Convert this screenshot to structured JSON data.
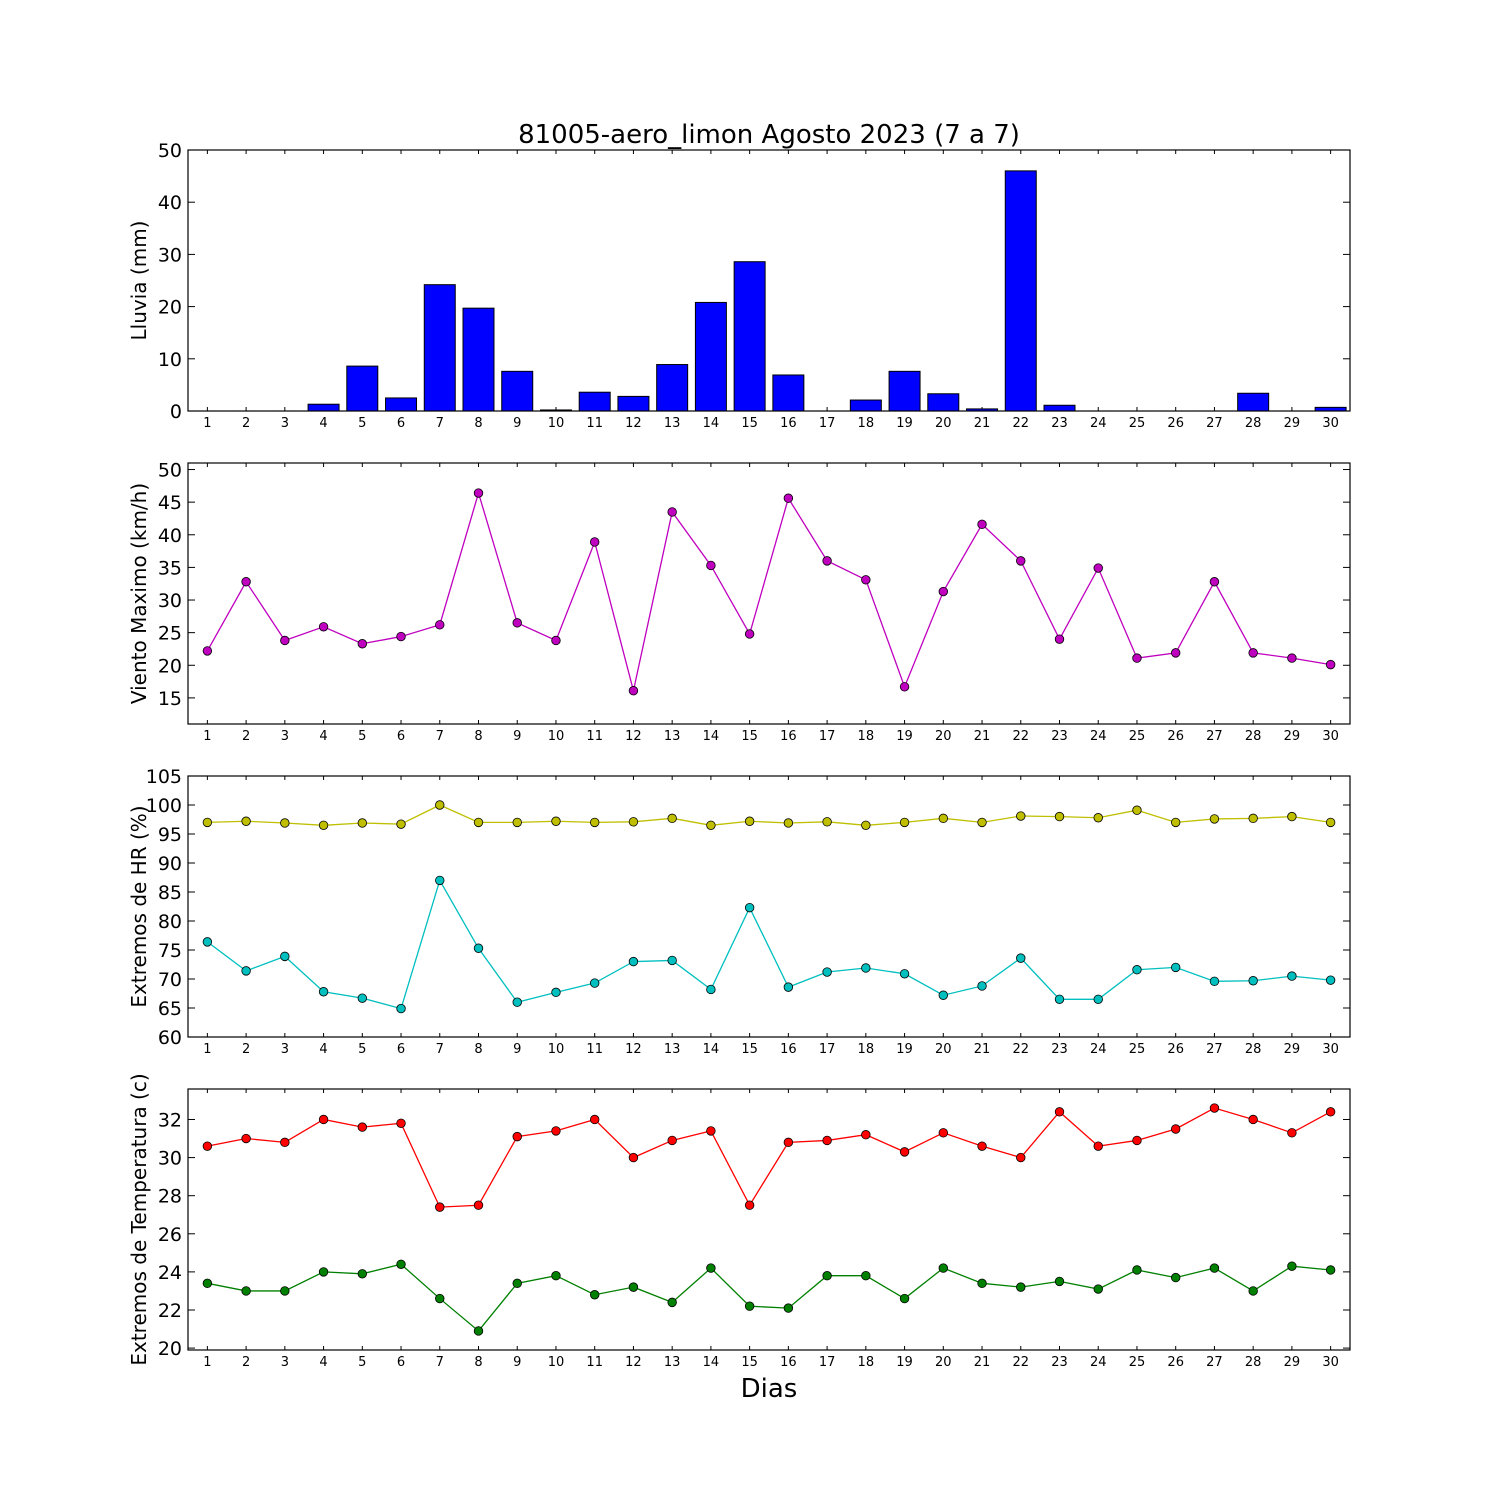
{
  "figure": {
    "title": "81005-aero_limon Agosto 2023  (7 a 7)",
    "xlabel": "Dias"
  },
  "chart_data": [
    {
      "type": "bar",
      "ylabel": "Lluvia (mm)",
      "ylim": [
        0,
        50
      ],
      "yticks": [
        0,
        10,
        20,
        30,
        40,
        50
      ],
      "x": [
        1,
        2,
        3,
        4,
        5,
        6,
        7,
        8,
        9,
        10,
        11,
        12,
        13,
        14,
        15,
        16,
        17,
        18,
        19,
        20,
        21,
        22,
        23,
        24,
        25,
        26,
        27,
        28,
        29,
        30
      ],
      "series": [
        {
          "color": "#0000ff",
          "values": [
            0,
            0,
            0,
            1.3,
            8.6,
            2.5,
            24.2,
            19.7,
            7.6,
            0.2,
            3.6,
            2.8,
            8.9,
            20.8,
            28.6,
            6.9,
            0,
            2.1,
            7.6,
            3.3,
            0.4,
            46.0,
            1.1,
            0,
            0,
            0,
            0,
            3.4,
            0,
            0.7
          ]
        }
      ]
    },
    {
      "type": "line",
      "ylabel": "Viento Maximo (km/h)",
      "ylim": [
        11,
        51
      ],
      "yticks": [
        15,
        20,
        25,
        30,
        35,
        40,
        45,
        50
      ],
      "x": [
        1,
        2,
        3,
        4,
        5,
        6,
        7,
        8,
        9,
        10,
        11,
        12,
        13,
        14,
        15,
        16,
        17,
        18,
        19,
        20,
        21,
        22,
        23,
        24,
        25,
        26,
        27,
        28,
        29,
        30
      ],
      "series": [
        {
          "color": "#bf00bf",
          "values": [
            22.2,
            32.8,
            23.8,
            25.9,
            23.3,
            24.4,
            26.2,
            46.4,
            26.5,
            23.8,
            38.9,
            16.1,
            43.5,
            35.3,
            24.8,
            45.6,
            36.0,
            33.1,
            16.7,
            31.3,
            41.6,
            36.0,
            24.0,
            34.9,
            21.1,
            21.9,
            32.8,
            21.9,
            21.1,
            20.1
          ]
        }
      ]
    },
    {
      "type": "line",
      "ylabel": "Extremos de HR (%)",
      "ylim": [
        60,
        105
      ],
      "yticks": [
        60,
        65,
        70,
        75,
        80,
        85,
        90,
        95,
        100,
        105
      ],
      "x": [
        1,
        2,
        3,
        4,
        5,
        6,
        7,
        8,
        9,
        10,
        11,
        12,
        13,
        14,
        15,
        16,
        17,
        18,
        19,
        20,
        21,
        22,
        23,
        24,
        25,
        26,
        27,
        28,
        29,
        30
      ],
      "series": [
        {
          "color": "#bfbf00",
          "values": [
            97.0,
            97.2,
            96.9,
            96.5,
            96.9,
            96.7,
            100.0,
            97.0,
            97.0,
            97.2,
            97.0,
            97.1,
            97.7,
            96.5,
            97.2,
            96.9,
            97.1,
            96.5,
            97.0,
            97.7,
            97.0,
            98.1,
            98.0,
            97.8,
            99.1,
            97.0,
            97.6,
            97.7,
            98.0,
            97.0
          ]
        },
        {
          "color": "#00bfbf",
          "values": [
            76.4,
            71.4,
            73.9,
            67.8,
            66.7,
            64.9,
            87.0,
            75.3,
            66.0,
            67.7,
            69.3,
            73.0,
            73.2,
            68.2,
            82.3,
            68.6,
            71.2,
            71.9,
            70.9,
            67.2,
            68.8,
            73.6,
            66.5,
            66.5,
            71.6,
            72.0,
            69.6,
            69.7,
            70.5,
            69.8
          ]
        }
      ]
    },
    {
      "type": "line",
      "ylabel": "Extremos de Temperatura (c)",
      "ylim": [
        19.9,
        33.6
      ],
      "yticks": [
        20,
        22,
        24,
        26,
        28,
        30,
        32
      ],
      "x": [
        1,
        2,
        3,
        4,
        5,
        6,
        7,
        8,
        9,
        10,
        11,
        12,
        13,
        14,
        15,
        16,
        17,
        18,
        19,
        20,
        21,
        22,
        23,
        24,
        25,
        26,
        27,
        28,
        29,
        30
      ],
      "series": [
        {
          "color": "#ff0000",
          "values": [
            30.6,
            31.0,
            30.8,
            32.0,
            31.6,
            31.8,
            27.4,
            27.5,
            31.1,
            31.4,
            32.0,
            30.0,
            30.9,
            31.4,
            27.5,
            30.8,
            30.9,
            31.2,
            30.3,
            31.3,
            30.6,
            30.0,
            32.4,
            30.6,
            30.9,
            31.5,
            32.6,
            32.0,
            31.3,
            32.4
          ]
        },
        {
          "color": "#008000",
          "values": [
            23.4,
            23.0,
            23.0,
            24.0,
            23.9,
            24.4,
            22.6,
            20.9,
            23.4,
            23.8,
            22.8,
            23.2,
            22.4,
            24.2,
            22.2,
            22.1,
            23.8,
            23.8,
            22.6,
            24.2,
            23.4,
            23.2,
            23.5,
            23.1,
            24.1,
            23.7,
            24.2,
            23.0,
            24.3,
            24.1
          ]
        }
      ]
    }
  ]
}
